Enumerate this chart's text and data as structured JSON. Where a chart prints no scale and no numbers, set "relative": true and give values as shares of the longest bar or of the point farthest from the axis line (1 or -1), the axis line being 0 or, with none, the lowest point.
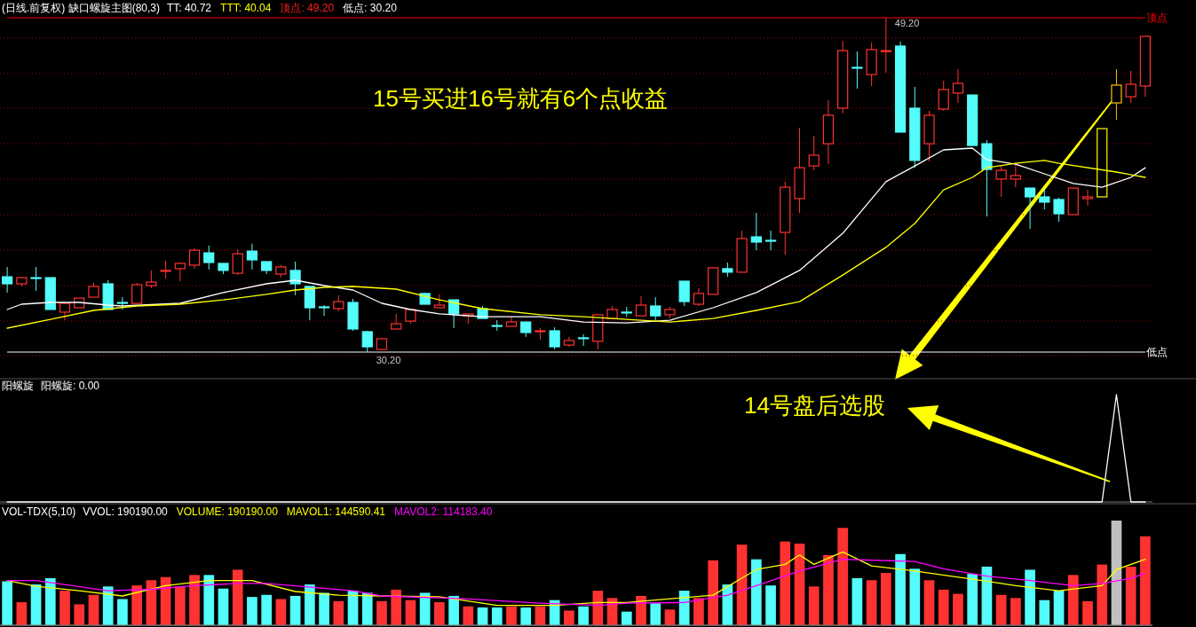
{
  "chart_data": [
    {
      "type": "candlestick",
      "title": "(日线.前复权) 缺口螺旋主图(80,3)",
      "categories": [
        null,
        null,
        null,
        null,
        null,
        null,
        null,
        null,
        null,
        null,
        null,
        null,
        null,
        null,
        null,
        null,
        null,
        null,
        null,
        null,
        null,
        null,
        null,
        null,
        null,
        null,
        null,
        null,
        null,
        null,
        null,
        null,
        null,
        null,
        null,
        null,
        null,
        null,
        null,
        null,
        null,
        null,
        null,
        null,
        null,
        null,
        null,
        null,
        null,
        null,
        null,
        null,
        null,
        null,
        null,
        null,
        null,
        null,
        null,
        null,
        null,
        null,
        null,
        null,
        null,
        null,
        null,
        null,
        null,
        null,
        null,
        null,
        null,
        null,
        null,
        null,
        null,
        null,
        null,
        null
      ],
      "ohlc": [
        [
          34.48,
          35.04,
          33.58,
          34.08
        ],
        [
          34.08,
          34.48,
          33.93,
          34.43
        ],
        [
          34.43,
          35.04,
          33.68,
          34.43
        ],
        [
          34.43,
          34.43,
          32.62,
          32.62
        ],
        [
          32.47,
          32.97,
          32.01,
          32.97
        ],
        [
          32.72,
          33.27,
          32.72,
          33.27
        ],
        [
          33.32,
          34.13,
          33.32,
          33.93
        ],
        [
          34.08,
          34.28,
          32.62,
          32.62
        ],
        [
          33.02,
          33.32,
          32.62,
          33.02
        ],
        [
          32.97,
          34.13,
          32.97,
          34.03
        ],
        [
          33.98,
          34.84,
          33.83,
          34.18
        ],
        [
          34.79,
          35.39,
          34.38,
          34.84
        ],
        [
          34.94,
          35.29,
          34.23,
          35.24
        ],
        [
          35.14,
          36.1,
          34.94,
          35.99
        ],
        [
          35.84,
          36.25,
          34.89,
          35.29
        ],
        [
          35.24,
          35.24,
          34.63,
          34.84
        ],
        [
          34.68,
          36.04,
          34.58,
          35.79
        ],
        [
          35.94,
          36.36,
          34.89,
          35.44
        ],
        [
          35.34,
          35.34,
          34.63,
          34.84
        ],
        [
          34.63,
          35.14,
          34.43,
          35.04
        ],
        [
          34.84,
          35.34,
          33.43,
          34.08
        ],
        [
          33.93,
          33.93,
          32.01,
          32.72
        ],
        [
          32.77,
          32.87,
          32.26,
          32.77
        ],
        [
          32.67,
          33.43,
          32.52,
          33.07
        ],
        [
          33.02,
          33.22,
          31.41,
          31.51
        ],
        [
          31.36,
          31.41,
          30.2,
          30.5
        ],
        [
          30.35,
          31.01,
          30.35,
          30.96
        ],
        [
          31.51,
          32.37,
          31.51,
          31.81
        ],
        [
          31.96,
          32.62,
          31.81,
          32.62
        ],
        [
          33.53,
          33.58,
          32.92,
          32.92
        ],
        [
          32.72,
          33.48,
          32.72,
          32.87
        ],
        [
          33.17,
          33.17,
          31.56,
          32.37
        ],
        [
          32.26,
          32.37,
          31.81,
          32.37
        ],
        [
          32.67,
          32.82,
          32.11,
          32.11
        ],
        [
          31.71,
          32.01,
          31.41,
          31.71
        ],
        [
          31.66,
          32.21,
          31.66,
          31.91
        ],
        [
          31.91,
          31.91,
          31.06,
          31.31
        ],
        [
          31.36,
          31.56,
          30.91,
          31.41
        ],
        [
          31.41,
          31.61,
          30.35,
          30.5
        ],
        [
          30.6,
          31.06,
          30.5,
          30.86
        ],
        [
          31.01,
          31.21,
          30.55,
          31.01
        ],
        [
          30.81,
          32.32,
          30.35,
          32.32
        ],
        [
          32.11,
          32.82,
          32.11,
          32.62
        ],
        [
          32.47,
          32.77,
          32.21,
          32.47
        ],
        [
          32.26,
          33.37,
          32.26,
          32.87
        ],
        [
          32.82,
          33.32,
          32.01,
          32.26
        ],
        [
          32.32,
          32.77,
          32.11,
          32.62
        ],
        [
          34.23,
          34.23,
          32.82,
          33.07
        ],
        [
          32.92,
          33.83,
          32.82,
          33.53
        ],
        [
          33.48,
          34.99,
          33.48,
          34.99
        ],
        [
          34.94,
          35.29,
          34.48,
          34.74
        ],
        [
          34.74,
          37.1,
          34.74,
          36.65
        ],
        [
          36.75,
          38.11,
          35.99,
          36.45
        ],
        [
          36.55,
          37.1,
          35.99,
          36.55
        ],
        [
          37.0,
          39.88,
          35.74,
          39.57
        ],
        [
          38.92,
          42.95,
          38.11,
          40.68
        ],
        [
          40.78,
          42.5,
          40.53,
          41.39
        ],
        [
          42.04,
          44.51,
          40.88,
          43.66
        ],
        [
          44.06,
          47.89,
          43.76,
          47.33
        ],
        [
          46.38,
          47.28,
          45.17,
          46.33
        ],
        [
          45.97,
          47.79,
          45.32,
          47.39
        ],
        [
          47.33,
          49.2,
          46.08,
          47.33
        ],
        [
          47.59,
          47.84,
          42.7,
          42.7
        ],
        [
          44.06,
          45.27,
          40.68,
          41.09
        ],
        [
          42.04,
          43.91,
          41.04,
          43.66
        ],
        [
          44.01,
          45.62,
          43.91,
          45.12
        ],
        [
          44.92,
          46.28,
          44.36,
          45.47
        ],
        [
          44.81,
          44.81,
          41.94,
          41.94
        ],
        [
          42.04,
          42.24,
          37.91,
          40.58
        ],
        [
          40.03,
          40.78,
          39.02,
          40.53
        ],
        [
          40.03,
          40.98,
          39.57,
          40.23
        ],
        [
          39.52,
          39.52,
          37.2,
          39.02
        ],
        [
          39.02,
          39.47,
          38.31,
          38.72
        ],
        [
          38.87,
          38.97,
          37.61,
          38.06
        ],
        [
          38.01,
          39.52,
          38.01,
          39.52
        ],
        [
          38.92,
          39.42,
          38.51,
          39.02
        ],
        [
          39.02,
          42.9,
          39.02,
          42.9
        ],
        [
          44.36,
          46.28,
          43.4,
          45.37
        ],
        [
          44.71,
          46.18,
          44.36,
          45.42
        ],
        [
          45.32,
          48.14,
          44.71,
          48.14
        ]
      ],
      "colors": [
        "#54fcfc",
        "#ff3232",
        "#54fcfc",
        "#54fcfc",
        "#ff3232",
        "#ff3232",
        "#ff3232",
        "#54fcfc",
        "#54fcfc",
        "#ff3232",
        "#ff3232",
        "#ff3232",
        "#ff3232",
        "#ff3232",
        "#54fcfc",
        "#54fcfc",
        "#ff3232",
        "#54fcfc",
        "#54fcfc",
        "#ff3232",
        "#54fcfc",
        "#54fcfc",
        "#54fcfc",
        "#ff3232",
        "#54fcfc",
        "#54fcfc",
        "#ff3232",
        "#ff3232",
        "#ff3232",
        "#54fcfc",
        "#ff3232",
        "#54fcfc",
        "#ff3232",
        "#54fcfc",
        "#54fcfc",
        "#ff3232",
        "#54fcfc",
        "#ff3232",
        "#54fcfc",
        "#ff3232",
        "#54fcfc",
        "#ff3232",
        "#ff3232",
        "#54fcfc",
        "#ff3232",
        "#54fcfc",
        "#ff3232",
        "#54fcfc",
        "#ff3232",
        "#ff3232",
        "#54fcfc",
        "#ff3232",
        "#54fcfc",
        "#54fcfc",
        "#ff3232",
        "#ff3232",
        "#ff3232",
        "#ff3232",
        "#ff3232",
        "#54fcfc",
        "#ff3232",
        "#ff3232",
        "#54fcfc",
        "#54fcfc",
        "#ff3232",
        "#ff3232",
        "#ff3232",
        "#54fcfc",
        "#54fcfc",
        "#ff3232",
        "#ff3232",
        "#54fcfc",
        "#54fcfc",
        "#54fcfc",
        "#ff3232",
        "#ff3232",
        "#ffff00",
        "#ffc000",
        "#ff3232",
        "#ff3232"
      ],
      "yticks": [
        48.04,
        46.03,
        44.06,
        42.04,
        40.03,
        38.01,
        35.99,
        33.98,
        31.96,
        30.0
      ],
      "grid": "y",
      "tick_labels": false,
      "series": [
        {
          "type": "line",
          "color": "#ffffff",
          "values": [
            32.62,
            32.92,
            null,
            33.02,
            null,
            33.02,
            null,
            32.87,
            32.82,
            null,
            null,
            null,
            32.97,
            null,
            null,
            33.58,
            null,
            null,
            34.08,
            null,
            34.28,
            null,
            33.98,
            null,
            33.73,
            null,
            32.97,
            null,
            32.62,
            null,
            32.37,
            null,
            null,
            32.21,
            null,
            null,
            null,
            32.21,
            null,
            null,
            31.91,
            null,
            null,
            31.86,
            null,
            null,
            32.01,
            null,
            null,
            32.72,
            null,
            null,
            33.58,
            null,
            null,
            34.84,
            null,
            null,
            36.95,
            null,
            null,
            39.88,
            null,
            40.78,
            null,
            41.69,
            null,
            41.79,
            41.14,
            null,
            40.88,
            null,
            40.33,
            null,
            39.78,
            null,
            39.57,
            null,
            40.13,
            40.68
          ]
        },
        {
          "type": "line",
          "color": "#ffff00",
          "values": [
            31.56,
            null,
            null,
            32.06,
            null,
            null,
            32.57,
            null,
            null,
            32.82,
            null,
            null,
            32.92,
            null,
            null,
            33.17,
            null,
            null,
            33.48,
            null,
            33.73,
            null,
            33.88,
            null,
            33.93,
            null,
            null,
            33.78,
            null,
            null,
            33.17,
            null,
            null,
            32.67,
            null,
            null,
            null,
            32.32,
            null,
            null,
            32.21,
            null,
            null,
            32.06,
            null,
            null,
            31.91,
            null,
            null,
            32.11,
            null,
            null,
            32.57,
            null,
            null,
            33.07,
            null,
            null,
            34.58,
            null,
            null,
            36.15,
            null,
            37.51,
            null,
            39.42,
            null,
            40.13,
            40.68,
            null,
            40.93,
            null,
            41.09,
            40.93,
            null,
            null,
            null,
            40.43,
            null,
            40.13
          ]
        }
      ],
      "ref_lines": [
        {
          "axis": "y",
          "value": 49.2,
          "label": "顶点",
          "color": "#ff0000"
        },
        {
          "axis": "y",
          "value": 30.2,
          "label": "低点",
          "color": "#ffffff"
        }
      ],
      "annotations": [
        "TT: 40.72",
        "TTT: 40.04",
        "顶点: 49.20",
        "低点: 30.20",
        "15号买进16号就有6个点收益",
        {
          "text": "49.20",
          "y": 49.2
        },
        {
          "text": "30.20",
          "y": 30.2
        }
      ]
    },
    {
      "type": "line",
      "title": "阳螺旋",
      "relative": true,
      "categories": [
        null,
        null,
        null,
        null,
        null,
        null,
        null,
        null,
        null,
        null,
        null,
        null,
        null,
        null,
        null,
        null,
        null,
        null,
        null,
        null,
        null,
        null,
        null,
        null,
        null,
        null,
        null,
        null,
        null,
        null,
        null,
        null,
        null,
        null,
        null,
        null,
        null,
        null,
        null,
        null,
        null,
        null,
        null,
        null,
        null,
        null,
        null,
        null,
        null,
        null,
        null,
        null,
        null,
        null,
        null,
        null,
        null,
        null,
        null,
        null,
        null,
        null,
        null,
        null,
        null,
        null,
        null,
        null,
        null,
        null,
        null,
        null,
        null,
        null,
        null,
        null,
        null,
        null,
        null,
        null
      ],
      "series": [
        {
          "color": "#ffffff",
          "values": [
            0,
            0,
            0,
            0,
            0,
            0,
            0,
            0,
            0,
            0,
            0,
            0,
            0,
            0,
            0,
            0,
            0,
            0,
            0,
            0,
            0,
            0,
            0,
            0,
            0,
            0,
            0,
            0,
            0,
            0,
            0,
            0,
            0,
            0,
            0,
            0,
            0,
            0,
            0,
            0,
            0,
            0,
            0,
            0,
            0,
            0,
            0,
            0,
            0,
            0,
            0,
            0,
            0,
            0,
            0,
            0,
            0,
            0,
            0,
            0,
            0,
            0,
            0,
            0,
            0,
            0,
            0,
            0,
            0,
            0,
            0,
            0,
            0,
            0,
            0,
            0,
            0,
            1,
            0,
            0
          ]
        }
      ],
      "annotations": [
        "阳螺旋: 0.00",
        "14号盘后选股"
      ]
    },
    {
      "type": "bar",
      "title": "VOL-TDX(5,10)",
      "relative": true,
      "categories": [
        null,
        null,
        null,
        null,
        null,
        null,
        null,
        null,
        null,
        null,
        null,
        null,
        null,
        null,
        null,
        null,
        null,
        null,
        null,
        null,
        null,
        null,
        null,
        null,
        null,
        null,
        null,
        null,
        null,
        null,
        null,
        null,
        null,
        null,
        null,
        null,
        null,
        null,
        null,
        null,
        null,
        null,
        null,
        null,
        null,
        null,
        null,
        null,
        null,
        null,
        null,
        null,
        null,
        null,
        null,
        null,
        null,
        null,
        null,
        null,
        null,
        null,
        null,
        null,
        null,
        null,
        null,
        null,
        null,
        null,
        null,
        null,
        null,
        null,
        null,
        null,
        null,
        null,
        null,
        null
      ],
      "series": [
        {
          "colors": [
            "#54fcfc",
            "#ff3232",
            "#54fcfc",
            "#54fcfc",
            "#ff3232",
            "#ff3232",
            "#ff3232",
            "#54fcfc",
            "#54fcfc",
            "#ff3232",
            "#ff3232",
            "#ff3232",
            "#ff3232",
            "#ff3232",
            "#54fcfc",
            "#54fcfc",
            "#ff3232",
            "#54fcfc",
            "#54fcfc",
            "#ff3232",
            "#54fcfc",
            "#54fcfc",
            "#54fcfc",
            "#ff3232",
            "#54fcfc",
            "#54fcfc",
            "#ff3232",
            "#ff3232",
            "#ff3232",
            "#54fcfc",
            "#ff3232",
            "#54fcfc",
            "#ff3232",
            "#54fcfc",
            "#54fcfc",
            "#ff3232",
            "#54fcfc",
            "#ff3232",
            "#54fcfc",
            "#ff3232",
            "#54fcfc",
            "#ff3232",
            "#ff3232",
            "#54fcfc",
            "#ff3232",
            "#54fcfc",
            "#ff3232",
            "#54fcfc",
            "#ff3232",
            "#ff3232",
            "#54fcfc",
            "#ff3232",
            "#54fcfc",
            "#54fcfc",
            "#ff3232",
            "#ff3232",
            "#ff3232",
            "#ff3232",
            "#ff3232",
            "#54fcfc",
            "#ff3232",
            "#ff3232",
            "#54fcfc",
            "#54fcfc",
            "#ff3232",
            "#ff3232",
            "#ff3232",
            "#54fcfc",
            "#54fcfc",
            "#ff3232",
            "#ff3232",
            "#54fcfc",
            "#54fcfc",
            "#54fcfc",
            "#ff3232",
            "#ff3232",
            "#ff3232",
            "#c0c0c0",
            "#ff3232",
            "#ff3232"
          ],
          "values": [
            0.42,
            0.22,
            0.39,
            0.45,
            0.33,
            0.2,
            0.29,
            0.37,
            0.25,
            0.38,
            0.43,
            0.46,
            0.37,
            0.48,
            0.48,
            0.35,
            0.53,
            0.27,
            0.29,
            0.25,
            0.28,
            0.39,
            0.31,
            0.23,
            0.33,
            0.31,
            0.23,
            0.34,
            0.24,
            0.31,
            0.22,
            0.28,
            0.18,
            0.17,
            0.17,
            0.18,
            0.17,
            0.18,
            0.24,
            0.14,
            0.18,
            0.33,
            0.26,
            0.13,
            0.28,
            0.21,
            0.15,
            0.33,
            0.26,
            0.62,
            0.39,
            0.77,
            0.63,
            0.38,
            0.8,
            0.78,
            0.37,
            0.67,
            0.93,
            0.45,
            0.43,
            0.5,
            0.68,
            0.54,
            0.43,
            0.34,
            0.3,
            0.49,
            0.56,
            0.29,
            0.26,
            0.53,
            0.24,
            0.33,
            0.48,
            0.23,
            0.58,
            1,
            0.56,
            0.85
          ]
        }
      ],
      "annotations": [
        "VVOL: 190190.00",
        "VOLUME: 190190.00",
        "MAVOL1: 144590.41",
        "MAVOL2: 114183.40"
      ]
    },
    {
      "type": "line",
      "relative": true,
      "categories": [
        null,
        null,
        null,
        null,
        null,
        null,
        null,
        null,
        null,
        null,
        null,
        null,
        null,
        null,
        null,
        null,
        null,
        null,
        null,
        null,
        null,
        null,
        null,
        null,
        null,
        null,
        null,
        null,
        null,
        null,
        null,
        null,
        null,
        null,
        null,
        null,
        null,
        null,
        null,
        null,
        null,
        null,
        null,
        null,
        null,
        null,
        null,
        null,
        null,
        null,
        null,
        null,
        null,
        null,
        null,
        null,
        null,
        null,
        null,
        null,
        null,
        null,
        null,
        null,
        null,
        null,
        null,
        null,
        null,
        null,
        null,
        null,
        null,
        null,
        null,
        null,
        null,
        null,
        null,
        null
      ],
      "series": [
        {
          "color": "#ffff00",
          "values": [
            0.61,
            null,
            0.53,
            null,
            null,
            0.47,
            null,
            null,
            0.4,
            null,
            null,
            0.54,
            null,
            null,
            0.61,
            null,
            null,
            0.61,
            null,
            null,
            0.46,
            null,
            null,
            0.41,
            null,
            null,
            0.4,
            null,
            null,
            null,
            0.39,
            null,
            null,
            null,
            0.27,
            null,
            null,
            null,
            0.27,
            null,
            null,
            0.31,
            null,
            0.31,
            null,
            null,
            null,
            null,
            null,
            0.41,
            null,
            null,
            0.76,
            null,
            0.83,
            0.96,
            0.83,
            null,
            1,
            null,
            0.81,
            null,
            null,
            0.74,
            null,
            null,
            null,
            null,
            0.6,
            null,
            0.54,
            null,
            null,
            0.47,
            null,
            null,
            0.54,
            0.76,
            null,
            0.9
          ]
        },
        {
          "color": "#ff00ff",
          "values": [
            0.61,
            null,
            0.61,
            null,
            null,
            null,
            null,
            0.47,
            null,
            null,
            0.49,
            null,
            null,
            0.54,
            null,
            null,
            0.57,
            null,
            0.57,
            null,
            null,
            null,
            null,
            null,
            0.47,
            null,
            0.4,
            null,
            null,
            null,
            null,
            null,
            0.36,
            null,
            null,
            null,
            null,
            0.3,
            null,
            null,
            null,
            0.27,
            null,
            0.3,
            null,
            null,
            null,
            0.31,
            null,
            null,
            0.41,
            null,
            0.54,
            null,
            null,
            0.74,
            null,
            null,
            0.9,
            null,
            null,
            null,
            null,
            0.87,
            null,
            0.77,
            null,
            null,
            0.67,
            null,
            null,
            0.61,
            null,
            null,
            0.54,
            null,
            0.57,
            null,
            0.64,
            0.71
          ]
        }
      ]
    }
  ]
}
